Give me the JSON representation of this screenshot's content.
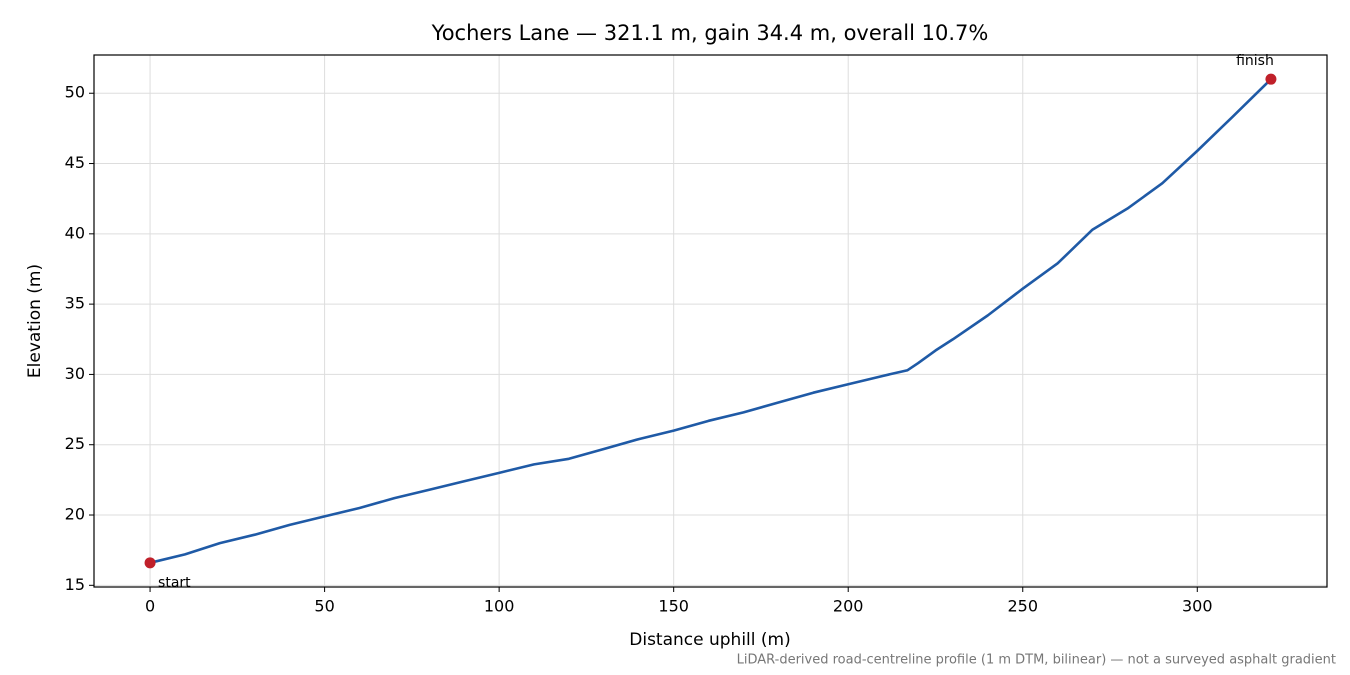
{
  "chart_data": {
    "type": "line",
    "title": "Yochers Lane — 321.1 m, gain 34.4 m, overall 10.7%",
    "x_label": "Distance uphill (m)",
    "y_label": "Elevation (m)",
    "footnote": "LiDAR-derived road-centreline profile (1 m DTM, bilinear) — not a surveyed asphalt gradient",
    "start_label": "start",
    "finish_label": "finish",
    "x": [
      0,
      10,
      20,
      30,
      40,
      50,
      60,
      70,
      80,
      90,
      100,
      110,
      120,
      130,
      140,
      150,
      160,
      170,
      180,
      190,
      200,
      210,
      217,
      220,
      225,
      230,
      240,
      250,
      260,
      270,
      280,
      290,
      300,
      310,
      321.1
    ],
    "series": [
      {
        "name": "Elevation",
        "color": "#1f5aa6",
        "values": [
          16.6,
          17.2,
          18.0,
          18.6,
          19.3,
          19.9,
          20.5,
          21.2,
          21.8,
          22.4,
          23.0,
          23.6,
          24.0,
          24.7,
          25.4,
          26.0,
          26.7,
          27.3,
          28.0,
          28.7,
          29.3,
          29.9,
          30.3,
          30.8,
          31.7,
          32.5,
          34.2,
          36.1,
          37.9,
          40.3,
          41.8,
          43.6,
          45.9,
          48.3,
          51.0
        ]
      }
    ],
    "endpoint_color": "#c0202a",
    "xlim": [
      -16.06,
      337.16
    ],
    "ylim": [
      14.88,
      52.72
    ],
    "xticks": [
      0,
      50,
      100,
      150,
      200,
      250,
      300
    ],
    "yticks": [
      15,
      20,
      25,
      30,
      35,
      40,
      45,
      50
    ],
    "grid": true
  }
}
